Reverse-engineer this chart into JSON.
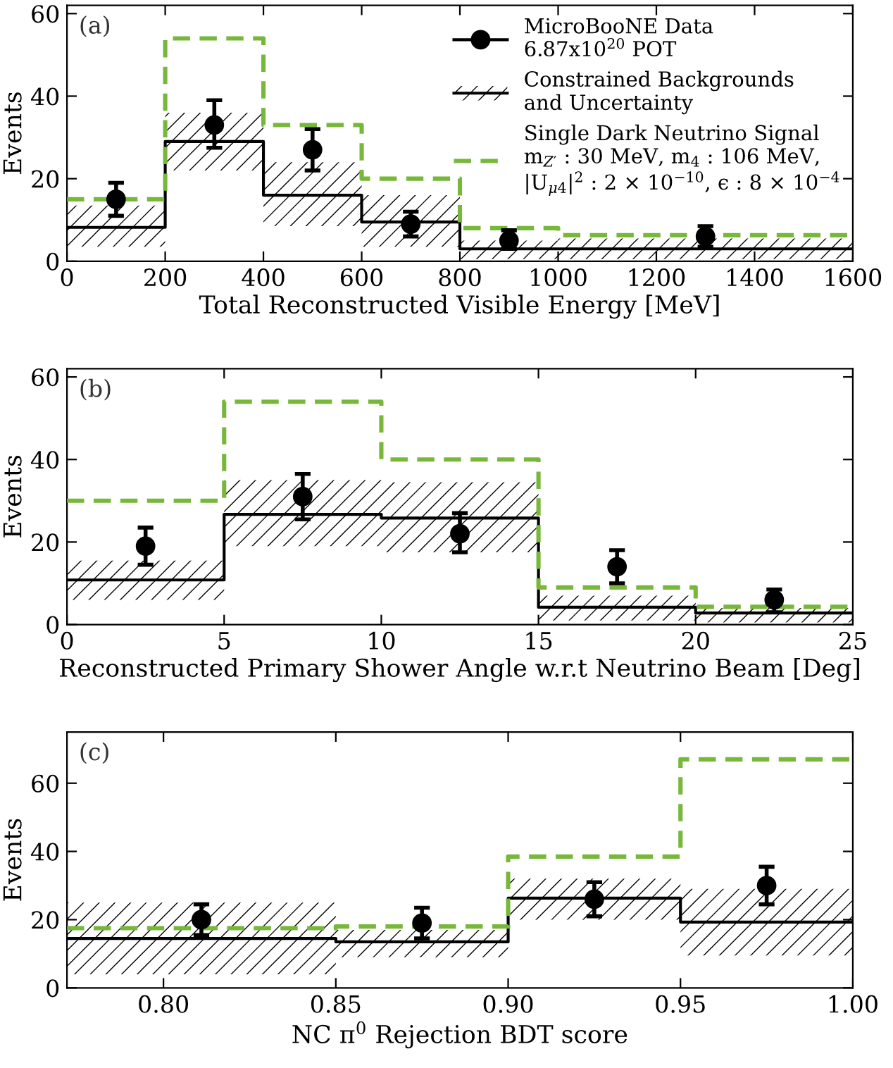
{
  "chart_data": [
    {
      "type": "step",
      "xlabel": "Total Reconstructed Visible Energy [MeV]",
      "ylabel": "Events",
      "annotations": [
        "(a)"
      ],
      "xlim": [
        0,
        1600
      ],
      "ylim": [
        0,
        62
      ],
      "xticks": [
        0,
        200,
        400,
        600,
        800,
        1000,
        1200,
        1400,
        1600
      ],
      "yticks": [
        0,
        20,
        40,
        60
      ],
      "legend": "top right",
      "grid": false,
      "series": [
        {
          "type": "scatter",
          "name": "MicroBooNE Data\n6.87x10$^{20}$ POT",
          "color": "#000000",
          "marker": "circle",
          "x": [
            100,
            300,
            500,
            700,
            900,
            1300
          ],
          "values": [
            15,
            33,
            27,
            9,
            5,
            6
          ],
          "errors": [
            [
              11,
              19
            ],
            [
              27.5,
              39
            ],
            [
              22,
              32
            ],
            [
              6,
              12
            ],
            [
              3,
              7.5
            ],
            [
              3.5,
              8.5
            ]
          ]
        },
        {
          "name": "Constrained Backgrounds\nand Uncertainty",
          "color": "#000000",
          "x": [
            0,
            200,
            400,
            600,
            800,
            1000,
            1600
          ],
          "values": [
            8.2,
            29,
            16,
            9.5,
            3,
            3,
            3
          ],
          "lower": [
            3.5,
            22,
            8.5,
            3.5,
            0.5,
            0.5,
            0.5
          ],
          "upper": [
            13.5,
            36,
            24,
            16,
            5,
            5.5,
            5.5
          ]
        },
        {
          "name": "Single Dark Neutrino Signal\nm$_{Z′}$ : 30 MeV, m$_{4}$ : 106 MeV,\n|U$_{μ4}$|$^{2}$ : 2 × 10$^{−10}$, ϵ : 8 × 10$^{−4}$",
          "color": "#77b83a",
          "line_style": "dashed",
          "x": [
            0,
            200,
            400,
            600,
            800,
            1000,
            1600
          ],
          "values": [
            15,
            54,
            33,
            20,
            8,
            6.3,
            6.3
          ]
        }
      ]
    },
    {
      "type": "step",
      "xlabel": "Reconstructed Primary Shower Angle w.r.t Neutrino Beam [Deg]",
      "ylabel": "Events",
      "annotations": [
        "(b)"
      ],
      "xlim": [
        0,
        25
      ],
      "ylim": [
        0,
        62
      ],
      "xticks": [
        0,
        5,
        10,
        15,
        20,
        25
      ],
      "yticks": [
        0,
        20,
        40,
        60
      ],
      "grid": false,
      "series": [
        {
          "type": "scatter",
          "color": "#000000",
          "marker": "circle",
          "x": [
            2.5,
            7.5,
            12.5,
            17.5,
            22.5
          ],
          "values": [
            19,
            31,
            22,
            14,
            6
          ],
          "errors": [
            [
              14.5,
              23.5
            ],
            [
              25.5,
              36.5
            ],
            [
              17.5,
              27
            ],
            [
              10,
              18
            ],
            [
              3,
              8.5
            ]
          ]
        },
        {
          "color": "#000000",
          "x": [
            0,
            5,
            10,
            15,
            20,
            25
          ],
          "values": [
            10.8,
            26.7,
            25.8,
            4.2,
            2.8,
            2.8
          ],
          "lower": [
            6,
            19,
            17.5,
            1,
            0.5,
            0.5
          ],
          "upper": [
            15.5,
            35,
            34.5,
            7,
            4,
            4
          ]
        },
        {
          "color": "#77b83a",
          "line_style": "dashed",
          "x": [
            0,
            5,
            10,
            15,
            20,
            25
          ],
          "values": [
            30,
            54,
            40,
            9,
            4.3,
            4.3
          ]
        }
      ]
    },
    {
      "type": "step",
      "xlabel": "NC π$^{0}$ Rejection BDT score",
      "ylabel": "Events",
      "annotations": [
        "(c)"
      ],
      "xlim": [
        0.772,
        1.0
      ],
      "ylim": [
        0,
        75
      ],
      "xticks": [
        {
          "value": 0.8,
          "label": "0.80"
        },
        {
          "value": 0.85,
          "label": "0.85"
        },
        {
          "value": 0.9,
          "label": "0.90"
        },
        {
          "value": 0.95,
          "label": "0.95"
        },
        {
          "value": 1.0,
          "label": "1.00"
        }
      ],
      "yticks": [
        0,
        20,
        40,
        60
      ],
      "grid": false,
      "series": [
        {
          "type": "scatter",
          "color": "#000000",
          "marker": "circle",
          "x": [
            0.811,
            0.875,
            0.925,
            0.975
          ],
          "values": [
            20,
            19,
            26,
            30
          ],
          "errors": [
            [
              15.5,
              24.5
            ],
            [
              14.5,
              23.5
            ],
            [
              21,
              31
            ],
            [
              24.5,
              35.5
            ]
          ]
        },
        {
          "color": "#000000",
          "x": [
            0.772,
            0.85,
            0.9,
            0.95,
            1.0
          ],
          "values": [
            14.5,
            13.5,
            26.3,
            19.3,
            19.3
          ],
          "lower": [
            4,
            9,
            20,
            9.5,
            9.5
          ],
          "upper": [
            25,
            17,
            32,
            29,
            29
          ]
        },
        {
          "color": "#77b83a",
          "line_style": "dashed",
          "x": [
            0.772,
            0.85,
            0.9,
            0.95,
            1.0
          ],
          "values": [
            17.5,
            18,
            38.5,
            67,
            67
          ]
        }
      ]
    }
  ]
}
